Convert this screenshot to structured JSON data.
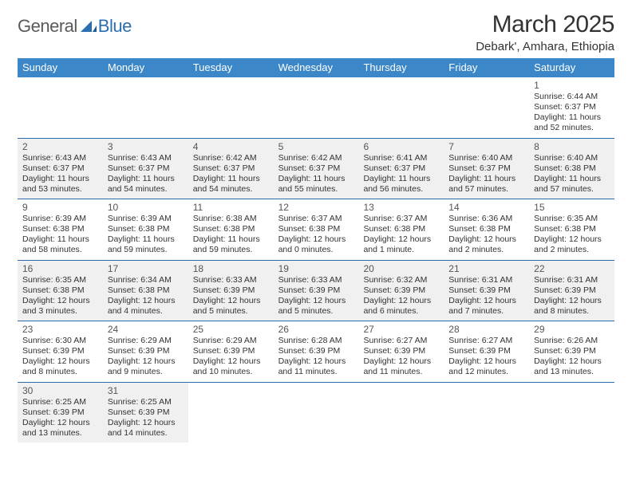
{
  "logo": {
    "general": "General",
    "blue": "Blue"
  },
  "title": "March 2025",
  "subtitle": "Debark', Amhara, Ethiopia",
  "colors": {
    "header_bg": "#3b87c8",
    "header_text": "#ffffff",
    "week_border": "#2f6da8",
    "shaded_bg": "#f0f0f0",
    "text": "#333333",
    "logo_gray": "#5a5a5a",
    "logo_blue": "#2b6fb0"
  },
  "weekdays": [
    "Sunday",
    "Monday",
    "Tuesday",
    "Wednesday",
    "Thursday",
    "Friday",
    "Saturday"
  ],
  "weeks": [
    [
      {
        "empty": true
      },
      {
        "empty": true
      },
      {
        "empty": true
      },
      {
        "empty": true
      },
      {
        "empty": true
      },
      {
        "empty": true
      },
      {
        "n": "1",
        "sr": "Sunrise: 6:44 AM",
        "ss": "Sunset: 6:37 PM",
        "d1": "Daylight: 11 hours",
        "d2": "and 52 minutes."
      }
    ],
    [
      {
        "n": "2",
        "sr": "Sunrise: 6:43 AM",
        "ss": "Sunset: 6:37 PM",
        "d1": "Daylight: 11 hours",
        "d2": "and 53 minutes.",
        "shaded": true
      },
      {
        "n": "3",
        "sr": "Sunrise: 6:43 AM",
        "ss": "Sunset: 6:37 PM",
        "d1": "Daylight: 11 hours",
        "d2": "and 54 minutes.",
        "shaded": true
      },
      {
        "n": "4",
        "sr": "Sunrise: 6:42 AM",
        "ss": "Sunset: 6:37 PM",
        "d1": "Daylight: 11 hours",
        "d2": "and 54 minutes.",
        "shaded": true
      },
      {
        "n": "5",
        "sr": "Sunrise: 6:42 AM",
        "ss": "Sunset: 6:37 PM",
        "d1": "Daylight: 11 hours",
        "d2": "and 55 minutes.",
        "shaded": true
      },
      {
        "n": "6",
        "sr": "Sunrise: 6:41 AM",
        "ss": "Sunset: 6:37 PM",
        "d1": "Daylight: 11 hours",
        "d2": "and 56 minutes.",
        "shaded": true
      },
      {
        "n": "7",
        "sr": "Sunrise: 6:40 AM",
        "ss": "Sunset: 6:37 PM",
        "d1": "Daylight: 11 hours",
        "d2": "and 57 minutes.",
        "shaded": true
      },
      {
        "n": "8",
        "sr": "Sunrise: 6:40 AM",
        "ss": "Sunset: 6:38 PM",
        "d1": "Daylight: 11 hours",
        "d2": "and 57 minutes.",
        "shaded": true
      }
    ],
    [
      {
        "n": "9",
        "sr": "Sunrise: 6:39 AM",
        "ss": "Sunset: 6:38 PM",
        "d1": "Daylight: 11 hours",
        "d2": "and 58 minutes."
      },
      {
        "n": "10",
        "sr": "Sunrise: 6:39 AM",
        "ss": "Sunset: 6:38 PM",
        "d1": "Daylight: 11 hours",
        "d2": "and 59 minutes."
      },
      {
        "n": "11",
        "sr": "Sunrise: 6:38 AM",
        "ss": "Sunset: 6:38 PM",
        "d1": "Daylight: 11 hours",
        "d2": "and 59 minutes."
      },
      {
        "n": "12",
        "sr": "Sunrise: 6:37 AM",
        "ss": "Sunset: 6:38 PM",
        "d1": "Daylight: 12 hours",
        "d2": "and 0 minutes."
      },
      {
        "n": "13",
        "sr": "Sunrise: 6:37 AM",
        "ss": "Sunset: 6:38 PM",
        "d1": "Daylight: 12 hours",
        "d2": "and 1 minute."
      },
      {
        "n": "14",
        "sr": "Sunrise: 6:36 AM",
        "ss": "Sunset: 6:38 PM",
        "d1": "Daylight: 12 hours",
        "d2": "and 2 minutes."
      },
      {
        "n": "15",
        "sr": "Sunrise: 6:35 AM",
        "ss": "Sunset: 6:38 PM",
        "d1": "Daylight: 12 hours",
        "d2": "and 2 minutes."
      }
    ],
    [
      {
        "n": "16",
        "sr": "Sunrise: 6:35 AM",
        "ss": "Sunset: 6:38 PM",
        "d1": "Daylight: 12 hours",
        "d2": "and 3 minutes.",
        "shaded": true
      },
      {
        "n": "17",
        "sr": "Sunrise: 6:34 AM",
        "ss": "Sunset: 6:38 PM",
        "d1": "Daylight: 12 hours",
        "d2": "and 4 minutes.",
        "shaded": true
      },
      {
        "n": "18",
        "sr": "Sunrise: 6:33 AM",
        "ss": "Sunset: 6:39 PM",
        "d1": "Daylight: 12 hours",
        "d2": "and 5 minutes.",
        "shaded": true
      },
      {
        "n": "19",
        "sr": "Sunrise: 6:33 AM",
        "ss": "Sunset: 6:39 PM",
        "d1": "Daylight: 12 hours",
        "d2": "and 5 minutes.",
        "shaded": true
      },
      {
        "n": "20",
        "sr": "Sunrise: 6:32 AM",
        "ss": "Sunset: 6:39 PM",
        "d1": "Daylight: 12 hours",
        "d2": "and 6 minutes.",
        "shaded": true
      },
      {
        "n": "21",
        "sr": "Sunrise: 6:31 AM",
        "ss": "Sunset: 6:39 PM",
        "d1": "Daylight: 12 hours",
        "d2": "and 7 minutes.",
        "shaded": true
      },
      {
        "n": "22",
        "sr": "Sunrise: 6:31 AM",
        "ss": "Sunset: 6:39 PM",
        "d1": "Daylight: 12 hours",
        "d2": "and 8 minutes.",
        "shaded": true
      }
    ],
    [
      {
        "n": "23",
        "sr": "Sunrise: 6:30 AM",
        "ss": "Sunset: 6:39 PM",
        "d1": "Daylight: 12 hours",
        "d2": "and 8 minutes."
      },
      {
        "n": "24",
        "sr": "Sunrise: 6:29 AM",
        "ss": "Sunset: 6:39 PM",
        "d1": "Daylight: 12 hours",
        "d2": "and 9 minutes."
      },
      {
        "n": "25",
        "sr": "Sunrise: 6:29 AM",
        "ss": "Sunset: 6:39 PM",
        "d1": "Daylight: 12 hours",
        "d2": "and 10 minutes."
      },
      {
        "n": "26",
        "sr": "Sunrise: 6:28 AM",
        "ss": "Sunset: 6:39 PM",
        "d1": "Daylight: 12 hours",
        "d2": "and 11 minutes."
      },
      {
        "n": "27",
        "sr": "Sunrise: 6:27 AM",
        "ss": "Sunset: 6:39 PM",
        "d1": "Daylight: 12 hours",
        "d2": "and 11 minutes."
      },
      {
        "n": "28",
        "sr": "Sunrise: 6:27 AM",
        "ss": "Sunset: 6:39 PM",
        "d1": "Daylight: 12 hours",
        "d2": "and 12 minutes."
      },
      {
        "n": "29",
        "sr": "Sunrise: 6:26 AM",
        "ss": "Sunset: 6:39 PM",
        "d1": "Daylight: 12 hours",
        "d2": "and 13 minutes."
      }
    ],
    [
      {
        "n": "30",
        "sr": "Sunrise: 6:25 AM",
        "ss": "Sunset: 6:39 PM",
        "d1": "Daylight: 12 hours",
        "d2": "and 13 minutes.",
        "shaded": true
      },
      {
        "n": "31",
        "sr": "Sunrise: 6:25 AM",
        "ss": "Sunset: 6:39 PM",
        "d1": "Daylight: 12 hours",
        "d2": "and 14 minutes.",
        "shaded": true
      },
      {
        "empty": true
      },
      {
        "empty": true
      },
      {
        "empty": true
      },
      {
        "empty": true
      },
      {
        "empty": true
      }
    ]
  ]
}
